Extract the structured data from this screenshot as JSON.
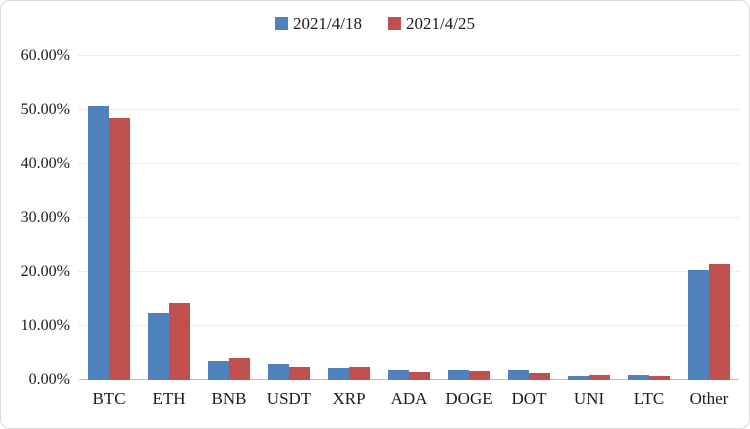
{
  "legend": {
    "items": [
      {
        "label": "2021/4/18",
        "color": "#4f81bd"
      },
      {
        "label": "2021/4/25",
        "color": "#c0504d"
      }
    ]
  },
  "chart_data": {
    "type": "bar",
    "title": "",
    "xlabel": "",
    "ylabel": "",
    "categories": [
      "BTC",
      "ETH",
      "BNB",
      "USDT",
      "XRP",
      "ADA",
      "DOGE",
      "DOT",
      "UNI",
      "LTC",
      "Other"
    ],
    "series": [
      {
        "name": "2021/4/18",
        "color": "#4f81bd",
        "values": [
          50.8,
          12.5,
          3.5,
          2.9,
          2.2,
          1.9,
          1.9,
          1.8,
          0.8,
          0.9,
          20.3
        ]
      },
      {
        "name": "2021/4/25",
        "color": "#c0504d",
        "values": [
          48.5,
          14.2,
          4.1,
          2.5,
          2.4,
          1.5,
          1.6,
          1.3,
          0.9,
          0.8,
          21.5
        ]
      }
    ],
    "ylim": [
      0,
      60
    ],
    "ytick_step": 10,
    "ytick_labels": [
      "0.00%",
      "10.00%",
      "20.00%",
      "30.00%",
      "40.00%",
      "50.00%",
      "60.00%"
    ],
    "grid": true,
    "legend_position": "top-center",
    "colors": {
      "gridline": "#d9d9d9",
      "axis_line": "#bfbfbf",
      "text": "#1a1a1a",
      "background": "#ffffff",
      "border": "#d9d9d9"
    }
  }
}
